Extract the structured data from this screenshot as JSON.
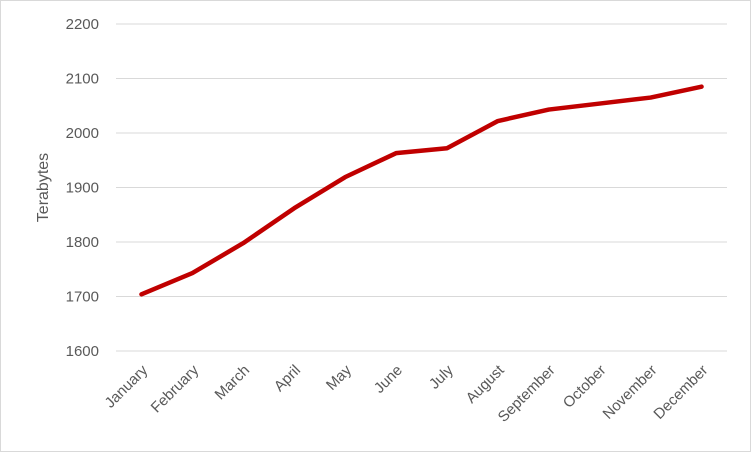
{
  "chart_data": {
    "type": "line",
    "title": "",
    "xlabel": "",
    "ylabel": "Terabytes",
    "categories": [
      "January",
      "February",
      "March",
      "April",
      "May",
      "June",
      "July",
      "August",
      "September",
      "October",
      "November",
      "December"
    ],
    "series": [
      {
        "values": [
          1704,
          1743,
          1798,
          1862,
          1919,
          1963,
          1972,
          2022,
          2043,
          2054,
          2065,
          2085
        ],
        "color": "#c00000"
      }
    ],
    "ylim": [
      1600,
      2200
    ],
    "yticks": [
      1600,
      1700,
      1800,
      1900,
      2000,
      2100,
      2200
    ],
    "grid": true,
    "legend": "none"
  }
}
